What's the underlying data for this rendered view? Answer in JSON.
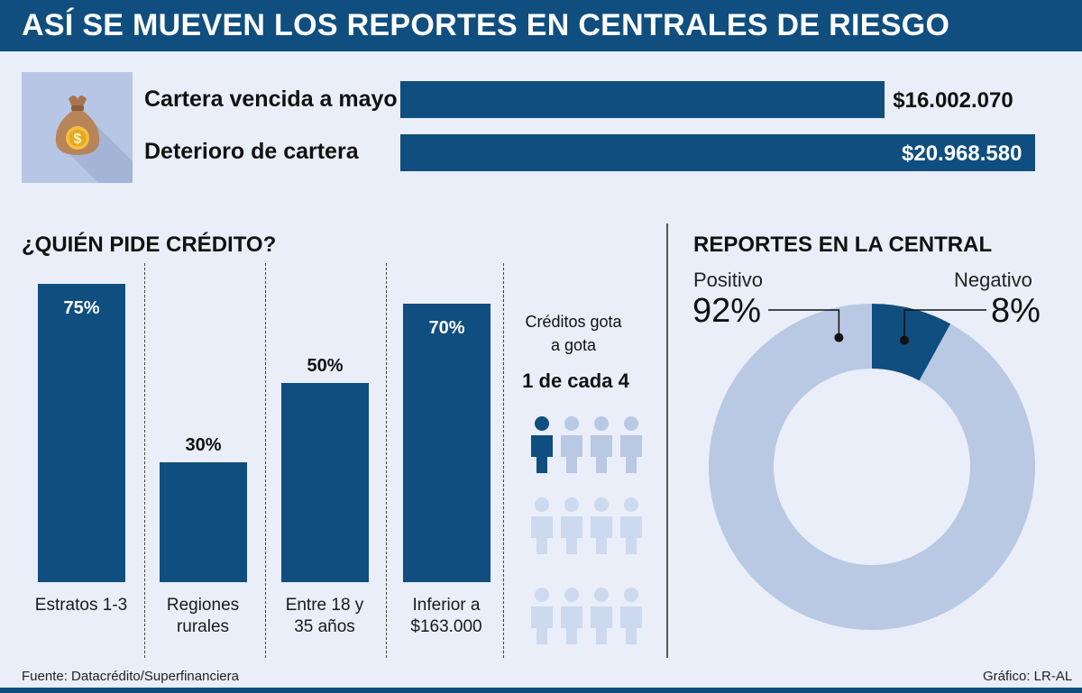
{
  "title": "ASÍ SE MUEVEN LOS REPORTES EN CENTRALES DE RIESGO",
  "colors": {
    "dark": "#0f4e7f",
    "light": "#b9c8e3",
    "background": "#e9eef8"
  },
  "money_icon": "money-bag-icon",
  "cartera": {
    "items": [
      {
        "label": "Cartera vencida a mayo",
        "value": 16002070,
        "display": "$16.002.070"
      },
      {
        "label": "Deterioro de cartera",
        "value": 20968580,
        "display": "$20.968.580"
      }
    ]
  },
  "quien": {
    "title": "¿QUIÉN PIDE CRÉDITO?",
    "bars": [
      {
        "category": "Estratos 1-3",
        "value": 75,
        "display": "75%"
      },
      {
        "category": "Regiones\nrurales",
        "value": 30,
        "display": "30%"
      },
      {
        "category": "Entre 18 y\n35 años",
        "value": 50,
        "display": "50%"
      },
      {
        "category": "Inferior a\n$163.000",
        "value": 70,
        "display": "70%"
      }
    ]
  },
  "gota": {
    "title": "Créditos gota\na gota",
    "count_text": "1 de cada 4",
    "person_icon": "person-icon",
    "highlighted": 1,
    "per_row": 4,
    "rows": 3
  },
  "reportes": {
    "title": "REPORTES EN LA CENTRAL",
    "positivo": {
      "label": "Positivo",
      "value": 92,
      "display": "92%"
    },
    "negativo": {
      "label": "Negativo",
      "value": 8,
      "display": "8%"
    }
  },
  "chart_data": [
    {
      "type": "bar",
      "orientation": "horizontal",
      "categories": [
        "Cartera vencida a mayo",
        "Deterioro de cartera"
      ],
      "values": [
        16002070,
        20968580
      ],
      "data_labels": [
        "$16.002.070",
        "$20.968.580"
      ]
    },
    {
      "type": "bar",
      "title": "¿QUIÉN PIDE CRÉDITO?",
      "categories": [
        "Estratos 1-3",
        "Regiones rurales",
        "Entre 18 y 35 años",
        "Inferior a $163.000"
      ],
      "values": [
        75,
        30,
        50,
        70
      ],
      "data_labels": [
        "75%",
        "30%",
        "50%",
        "70%"
      ]
    },
    {
      "type": "pie",
      "title": "REPORTES EN LA CENTRAL",
      "categories": [
        "Positivo",
        "Negativo"
      ],
      "values": [
        92,
        8
      ],
      "data_labels": [
        "92%",
        "8%"
      ]
    }
  ],
  "footer": {
    "source": "Fuente: Datacrédito/Superfinanciera",
    "credit": "Gráfico: LR-AL"
  }
}
